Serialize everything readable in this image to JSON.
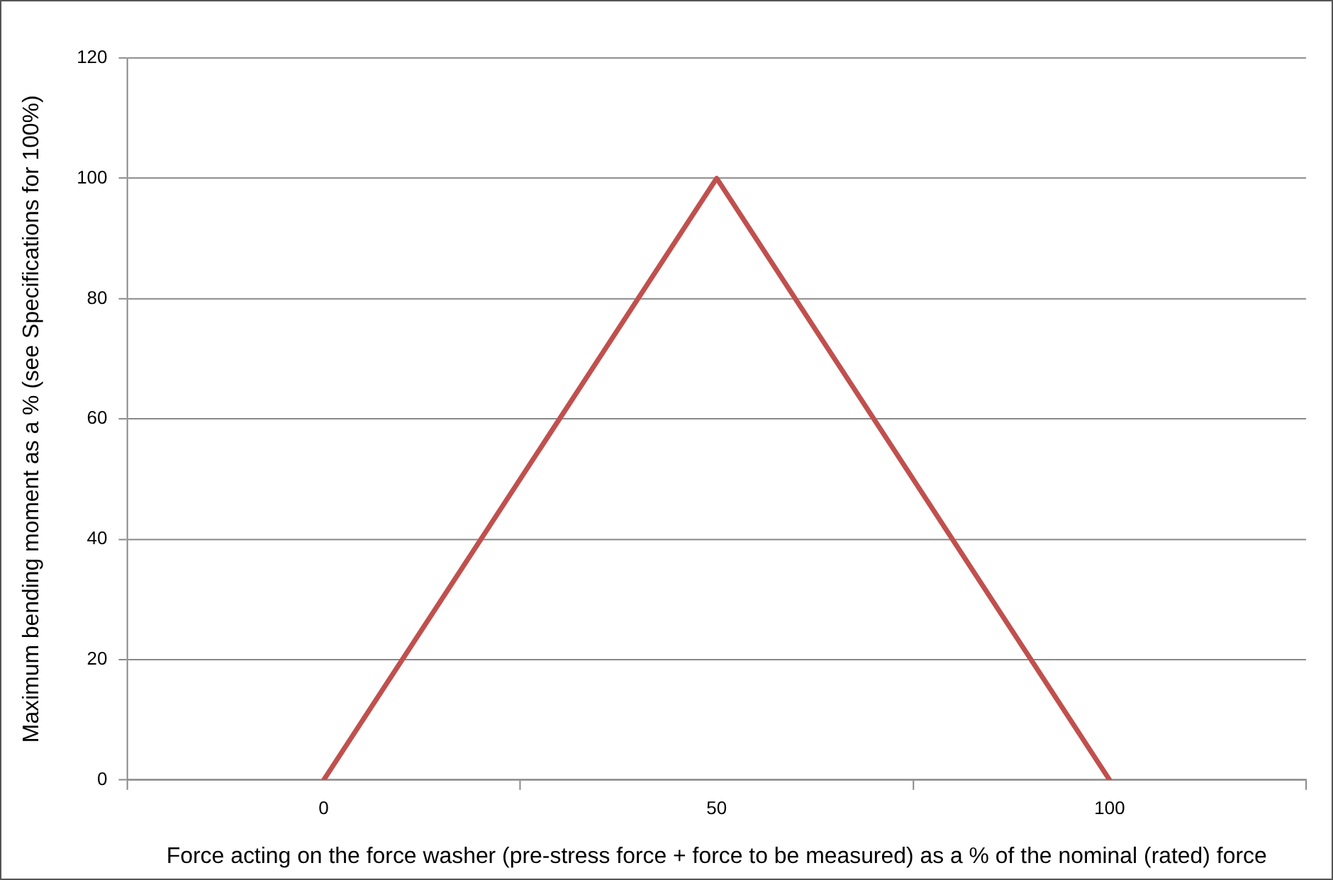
{
  "chart_data": {
    "type": "line",
    "xlabel": "Force acting on the force washer (pre-stress force + force to be measured) as a % of the nominal (rated) force",
    "ylabel": "Maximum bending moment as a % (see Specifications for 100%)",
    "categories": [
      "0",
      "50",
      "100"
    ],
    "series": [
      {
        "color": "#c0504d",
        "values": [
          0,
          100,
          0
        ]
      }
    ],
    "ylim": [
      0,
      120
    ],
    "yticks": [
      0,
      20,
      40,
      60,
      80,
      100,
      120
    ],
    "grid": "y",
    "legend": false,
    "marker": "none",
    "line_style": "solid"
  }
}
